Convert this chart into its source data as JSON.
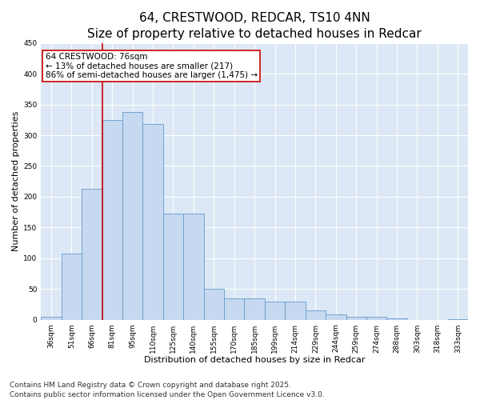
{
  "title": "64, CRESTWOOD, REDCAR, TS10 4NN",
  "subtitle": "Size of property relative to detached houses in Redcar",
  "xlabel": "Distribution of detached houses by size in Redcar",
  "ylabel": "Number of detached properties",
  "categories": [
    "36sqm",
    "51sqm",
    "66sqm",
    "81sqm",
    "95sqm",
    "110sqm",
    "125sqm",
    "140sqm",
    "155sqm",
    "170sqm",
    "185sqm",
    "199sqm",
    "214sqm",
    "229sqm",
    "244sqm",
    "259sqm",
    "274sqm",
    "288sqm",
    "303sqm",
    "318sqm",
    "333sqm"
  ],
  "values": [
    5,
    107,
    213,
    325,
    338,
    318,
    172,
    172,
    50,
    34,
    34,
    29,
    29,
    15,
    9,
    5,
    5,
    2,
    0,
    0,
    1
  ],
  "bar_color": "#c6d9f0",
  "bar_edge_color": "#6699cc",
  "red_line_color": "#cc0000",
  "red_line_x": 2.5,
  "annotation_text": "64 CRESTWOOD: 76sqm\n← 13% of detached houses are smaller (217)\n86% of semi-detached houses are larger (1,475) →",
  "annotation_box_color": "#ffffff",
  "annotation_box_edge_color": "#cc0000",
  "ylim": [
    0,
    450
  ],
  "yticks": [
    0,
    50,
    100,
    150,
    200,
    250,
    300,
    350,
    400,
    450
  ],
  "background_color": "#dce8f5",
  "footnote": "Contains HM Land Registry data © Crown copyright and database right 2025.\nContains public sector information licensed under the Open Government Licence v3.0.",
  "title_fontsize": 11,
  "xlabel_fontsize": 8,
  "ylabel_fontsize": 8,
  "tick_fontsize": 6.5,
  "annotation_fontsize": 7.5,
  "footnote_fontsize": 6.5
}
